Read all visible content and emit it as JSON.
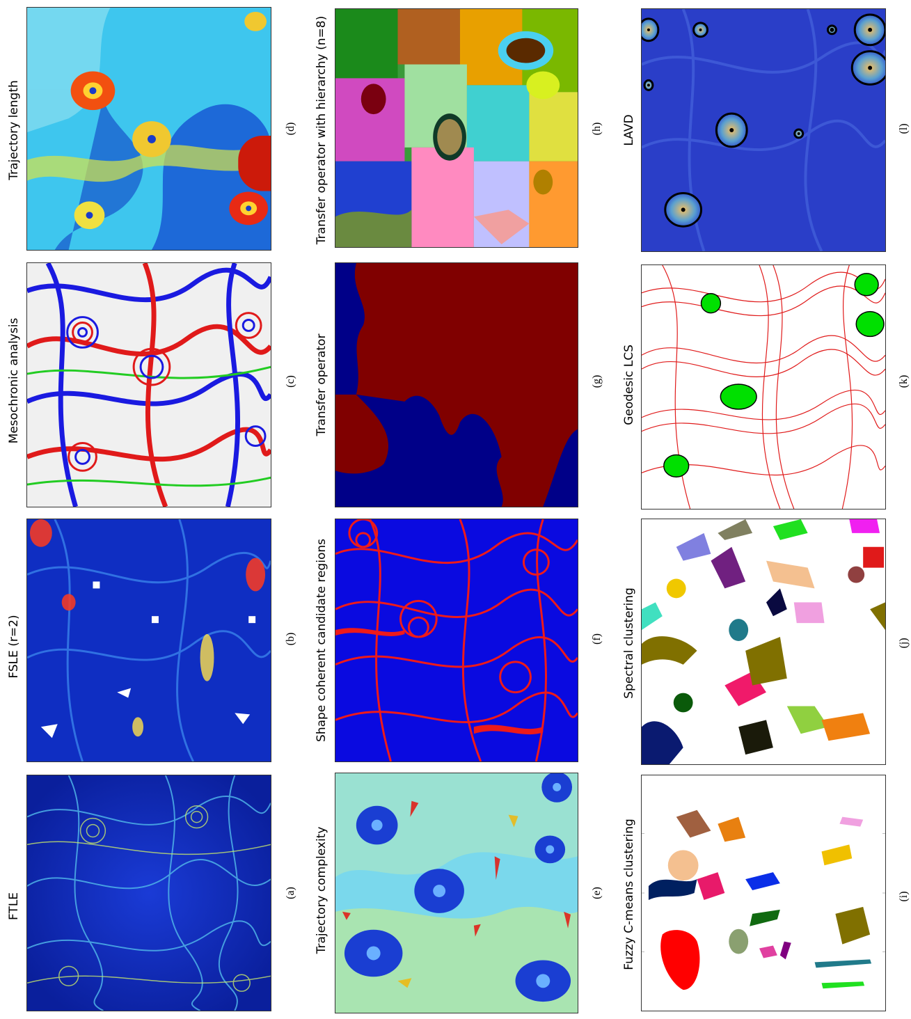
{
  "figure": {
    "panels": [
      {
        "id": "a",
        "label": "(a)",
        "title": "FTLE"
      },
      {
        "id": "b",
        "label": "(b)",
        "title": "FSLE (r=2)"
      },
      {
        "id": "c",
        "label": "(c)",
        "title": "Mesochronic analysis"
      },
      {
        "id": "d",
        "label": "(d)",
        "title": "Trajectory length"
      },
      {
        "id": "e",
        "label": "(e)",
        "title": "Trajectory complexity"
      },
      {
        "id": "f",
        "label": "(f)",
        "title": "Shape coherent candidate regions"
      },
      {
        "id": "g",
        "label": "(g)",
        "title": "Transfer operator"
      },
      {
        "id": "h",
        "label": "(h)",
        "title": "Transfer operator with hierarchy (n=8)"
      },
      {
        "id": "i",
        "label": "(i)",
        "title": "Fuzzy C-means clustering"
      },
      {
        "id": "j",
        "label": "(j)",
        "title": "Spectral clustering"
      },
      {
        "id": "k",
        "label": "(k)",
        "title": "Geodesic LCS"
      },
      {
        "id": "l",
        "label": "(l)",
        "title": "LAVD"
      }
    ]
  }
}
